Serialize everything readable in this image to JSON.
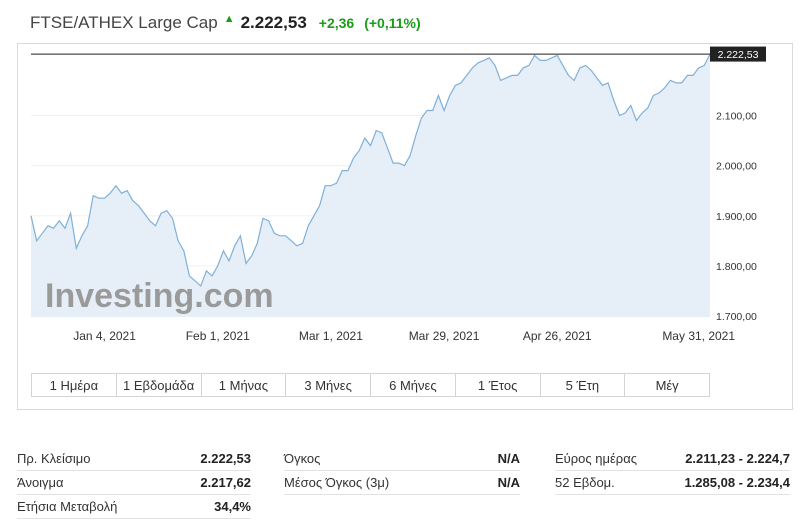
{
  "header": {
    "title": "FTSE/ATHEX Large Cap",
    "price": "2.222,53",
    "change": "+2,36",
    "change_pct": "(+0,11%)",
    "up_color": "#1a9e1a",
    "arrow_icon": "up-arrow-icon"
  },
  "ranges": [
    "1 Ημέρα",
    "1 Εβδομάδα",
    "1 Μήνας",
    "3 Μήνες",
    "6 Μήνες",
    "1 Έτος",
    "5 Έτη",
    "Μέγ"
  ],
  "stats": {
    "col1": [
      {
        "label": "Πρ. Κλείσιμο",
        "value": "2.222,53"
      },
      {
        "label": "Άνοιγμα",
        "value": "2.217,62"
      },
      {
        "label": "Ετήσια Μεταβολή",
        "value": "34,4%"
      }
    ],
    "col2": [
      {
        "label": "Όγκος",
        "value": "N/A"
      },
      {
        "label": "Μέσος Όγκος (3μ)",
        "value": "N/A"
      }
    ],
    "col3": [
      {
        "label": "Εύρος ημέρας",
        "value": "2.211,23 - 2.224,7"
      },
      {
        "label": "52 Εβδομ.",
        "value": "1.285,08 - 2.234,4"
      }
    ]
  },
  "chart_data": {
    "type": "area",
    "watermark": "Investing.com",
    "line_color": "#7fb0d9",
    "fill_color": "#e6eff7",
    "last_value": 2222.53,
    "last_value_label": "2.222,53",
    "ylim": [
      1700,
      2200
    ],
    "y_ticks": [
      1700,
      1800,
      1900,
      2000,
      2100
    ],
    "y_tick_labels": [
      "1.700,00",
      "1.800,00",
      "1.900,00",
      "2.000,00",
      "2.100,00"
    ],
    "x_tick_labels": [
      "Jan 4, 2021",
      "Feb 1, 2021",
      "Mar 1, 2021",
      "Mar 29, 2021",
      "Apr 26, 2021",
      "May 31, 2021"
    ],
    "x_tick_index": [
      13,
      33,
      53,
      73,
      93,
      118
    ],
    "values": [
      1900,
      1850,
      1865,
      1880,
      1875,
      1890,
      1875,
      1905,
      1835,
      1860,
      1880,
      1940,
      1935,
      1935,
      1945,
      1960,
      1945,
      1950,
      1930,
      1920,
      1905,
      1890,
      1880,
      1905,
      1910,
      1895,
      1850,
      1830,
      1780,
      1770,
      1760,
      1790,
      1780,
      1800,
      1830,
      1810,
      1840,
      1860,
      1805,
      1820,
      1845,
      1895,
      1890,
      1865,
      1860,
      1860,
      1850,
      1840,
      1845,
      1880,
      1900,
      1920,
      1960,
      1960,
      1965,
      1990,
      1990,
      2015,
      2030,
      2055,
      2040,
      2070,
      2065,
      2035,
      2005,
      2005,
      2000,
      2020,
      2060,
      2095,
      2110,
      2110,
      2140,
      2110,
      2140,
      2160,
      2165,
      2180,
      2195,
      2205,
      2210,
      2215,
      2200,
      2170,
      2175,
      2180,
      2180,
      2195,
      2200,
      2220,
      2210,
      2210,
      2215,
      2220,
      2200,
      2180,
      2170,
      2195,
      2200,
      2190,
      2175,
      2160,
      2165,
      2130,
      2100,
      2105,
      2120,
      2090,
      2105,
      2115,
      2140,
      2145,
      2155,
      2170,
      2165,
      2165,
      2180,
      2180,
      2195,
      2200,
      2222.53
    ]
  }
}
